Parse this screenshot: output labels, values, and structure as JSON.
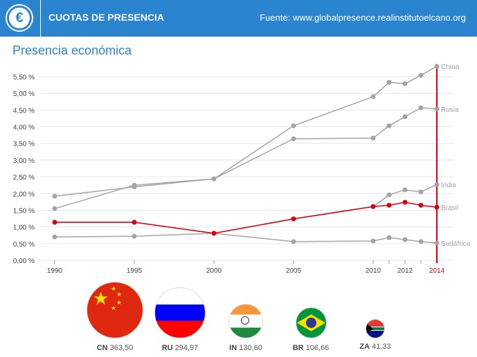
{
  "header": {
    "title": "CUOTAS DE PRESENCIA",
    "source": "Fuente: www.globalpresence.realinstitutoelcano.org",
    "icon": "euro-icon"
  },
  "subtitle": "Presencia económica",
  "chart_data": {
    "type": "line",
    "title": "Presencia económica",
    "x": [
      1990,
      1995,
      2000,
      2005,
      2010,
      2011,
      2012,
      2013,
      2014
    ],
    "x_tick_labels": [
      "1990",
      "1995",
      "2000",
      "2005",
      "2010",
      "2012",
      "2014"
    ],
    "y_tick_labels": [
      "0,00 %",
      "0,50 %",
      "1,00 %",
      "1,50 %",
      "2,00 %",
      "2,50 %",
      "3,00 %",
      "3,50 %",
      "4,00 %",
      "4,50 %",
      "5,00 %",
      "5,50 %"
    ],
    "ylim": [
      0,
      5.5
    ],
    "highlight_year": 2014,
    "grid": true,
    "series": [
      {
        "name": "China",
        "color": "#a3a3ab",
        "values": [
          1.55,
          2.25,
          2.44,
          4.03,
          4.9,
          5.33,
          5.29,
          5.54,
          5.81
        ]
      },
      {
        "name": "Rusia",
        "color": "#a3a3ab",
        "values": [
          1.92,
          2.2,
          2.44,
          3.64,
          3.66,
          4.03,
          4.3,
          4.57,
          4.53
        ]
      },
      {
        "name": "India",
        "color": "#a3a3ab",
        "values": [
          1.14,
          1.14,
          0.81,
          1.24,
          1.61,
          1.96,
          2.11,
          2.05,
          2.27
        ]
      },
      {
        "name": "Sudáfrica",
        "color": "#a3a3ab",
        "values": [
          0.7,
          0.72,
          0.81,
          0.56,
          0.58,
          0.68,
          0.62,
          0.56,
          0.52
        ]
      },
      {
        "name": "Brasil",
        "color": "#d7000f",
        "values": [
          1.14,
          1.14,
          0.81,
          1.24,
          1.61,
          1.65,
          1.74,
          1.65,
          1.59
        ]
      }
    ]
  },
  "flags": [
    {
      "code": "CN",
      "value": "363,50"
    },
    {
      "code": "RU",
      "value": "294,97"
    },
    {
      "code": "IN",
      "value": "130,60"
    },
    {
      "code": "BR",
      "value": "106,66"
    },
    {
      "code": "ZA",
      "value": "41,33"
    }
  ]
}
